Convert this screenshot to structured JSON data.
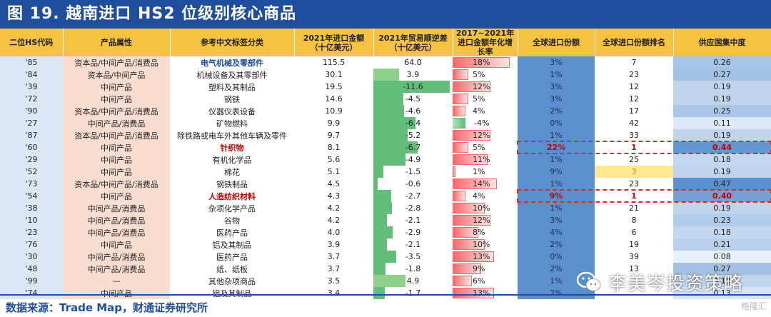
{
  "title": "图 19. 越南进口 HS2 位级别核心商品",
  "source": "数据来源：Trade Map，财通证券研究所",
  "watermark": "李美岑投资策略",
  "logo": "格隆汇",
  "colors": {
    "header_bg": "#f5c242",
    "title_bg": "#1f4e9c",
    "code_bg": "#dbe7f4",
    "attr_bg": "#f9ddd0",
    "balance_pos_fill": "#7fc97f",
    "balance_neg_fill": "#63be7b",
    "growth_fill": "#f8696b",
    "share_bg": "#5b8fce",
    "highlight": "#d0302a"
  },
  "chart_data": {
    "type": "table",
    "columns": [
      "二位HS代码",
      "产品属性",
      "参考中文标签分类",
      "2021年进口金额（十亿美元）",
      "2021年贸易顺逆差（十亿美元）",
      "2017~2021年进口金额年化增长率",
      "全球进口份额",
      "全球进口份额排名",
      "供应国集中度"
    ],
    "rows": [
      {
        "code": "'85",
        "attr": "资本品/中间产品/消费品",
        "cn": "电气机械及零部件",
        "cn_style": "blue",
        "imp": "115.5",
        "bal": 64.0,
        "bal_text": "64.0",
        "growth": 18,
        "growth_text": "18%",
        "share": "3%",
        "rank": "7",
        "conc": 0.26
      },
      {
        "code": "'84",
        "attr": "资本品/中间产品",
        "cn": "机械设备及其零部件",
        "cn_style": "",
        "imp": "30.1",
        "bal": 3.9,
        "bal_text": "3.9",
        "growth": 5,
        "growth_text": "5%",
        "share": "1%",
        "rank": "23",
        "conc": 0.27
      },
      {
        "code": "'39",
        "attr": "中间产品",
        "cn": "塑料及其制品",
        "cn_style": "",
        "imp": "19.5",
        "bal": -11.6,
        "bal_text": "-11.6",
        "growth": 12,
        "growth_text": "12%",
        "share": "3%",
        "rank": "12",
        "conc": 0.19
      },
      {
        "code": "'72",
        "attr": "中间产品",
        "cn": "钢铁",
        "cn_style": "",
        "imp": "14.6",
        "bal": -4.5,
        "bal_text": "-4.5",
        "growth": 5,
        "growth_text": "5%",
        "share": "3%",
        "rank": "12",
        "conc": 0.19
      },
      {
        "code": "'90",
        "attr": "资本品/中间产品/消费品",
        "cn": "仪器仪表设备",
        "cn_style": "",
        "imp": "10.9",
        "bal": -4.6,
        "bal_text": "-4.6",
        "growth": 4,
        "growth_text": "4%",
        "share": "2%",
        "rank": "17",
        "conc": 0.25
      },
      {
        "code": "'27",
        "attr": "中间产品/消费品",
        "cn": "矿物燃料",
        "cn_style": "",
        "imp": "9.9",
        "bal": -6.4,
        "bal_text": "-6.4",
        "growth": -4,
        "growth_text": "-4%",
        "share": "0%",
        "rank": "42",
        "conc": 0.11
      },
      {
        "code": "'87",
        "attr": "资本品/中间产品/消费品",
        "cn": "除铁路或电车外其他车辆及零件",
        "cn_style": "",
        "imp": "9.7",
        "bal": -5.2,
        "bal_text": "-5.2",
        "growth": 12,
        "growth_text": "12%",
        "share": "1%",
        "rank": "33",
        "conc": 0.19
      },
      {
        "code": "'60",
        "attr": "中间产品",
        "cn": "针织物",
        "cn_style": "red",
        "imp": "8.1",
        "bal": -6.7,
        "bal_text": "-6.7",
        "growth": 5,
        "growth_text": "5%",
        "share": "22%",
        "rank": "1",
        "conc": 0.44,
        "highlight": true
      },
      {
        "code": "'29",
        "attr": "中间产品",
        "cn": "有机化学品",
        "cn_style": "",
        "imp": "5.6",
        "bal": -4.9,
        "bal_text": "-4.9",
        "growth": 11,
        "growth_text": "11%",
        "share": "1%",
        "rank": "25",
        "conc": 0.18
      },
      {
        "code": "'52",
        "attr": "中间产品",
        "cn": "棉花",
        "cn_style": "",
        "imp": "5.1",
        "bal": -1.5,
        "bal_text": "-1.5",
        "growth": 1,
        "growth_text": "1%",
        "share": "9%",
        "rank": "3",
        "conc": 0.19,
        "rank_yellow": true
      },
      {
        "code": "'73",
        "attr": "资本品/中间产品/消费品",
        "cn": "钢铁制品",
        "cn_style": "",
        "imp": "4.5",
        "bal": -0.6,
        "bal_text": "-0.6",
        "growth": 14,
        "growth_text": "14%",
        "share": "1%",
        "rank": "23",
        "conc": 0.47
      },
      {
        "code": "'54",
        "attr": "中间产品",
        "cn": "人造纺织材料",
        "cn_style": "red",
        "imp": "4.3",
        "bal": -2.7,
        "bal_text": "-2.7",
        "growth": 4,
        "growth_text": "4%",
        "share": "9%",
        "rank": "1",
        "conc": 0.4,
        "highlight": true
      },
      {
        "code": "'38",
        "attr": "中间产品/消费品",
        "cn": "杂项化学产品",
        "cn_style": "",
        "imp": "4.2",
        "bal": -2.8,
        "bal_text": "-2.8",
        "growth": 10,
        "growth_text": "10%",
        "share": "1%",
        "rank": "21",
        "conc": 0.19
      },
      {
        "code": "'10",
        "attr": "中间产品/消费品",
        "cn": "谷物",
        "cn_style": "",
        "imp": "4.2",
        "bal": -2.1,
        "bal_text": "-2.1",
        "growth": 12,
        "growth_text": "12%",
        "share": "3%",
        "rank": "8",
        "conc": 0.23
      },
      {
        "code": "'23",
        "attr": "中间产品/消费品",
        "cn": "医药产品",
        "cn_style": "",
        "imp": "4.0",
        "bal": -2.9,
        "bal_text": "-2.9",
        "growth": 8,
        "growth_text": "8%",
        "share": "4%",
        "rank": "6",
        "conc": 0.18
      },
      {
        "code": "'76",
        "attr": "中间产品",
        "cn": "铝及其制品",
        "cn_style": "",
        "imp": "3.9",
        "bal": -2.1,
        "bal_text": "-2.1",
        "growth": 10,
        "growth_text": "10%",
        "share": "2%",
        "rank": "19",
        "conc": 0.21
      },
      {
        "code": "'30",
        "attr": "中间产品/消费品",
        "cn": "医药产品",
        "cn_style": "",
        "imp": "3.7",
        "bal": -3.5,
        "bal_text": "-3.5",
        "growth": 13,
        "growth_text": "13%",
        "share": "0%",
        "rank": "39",
        "conc": 0.08
      },
      {
        "code": "'48",
        "attr": "中间产品/消费品",
        "cn": "纸、纸板",
        "cn_style": "",
        "imp": "3.7",
        "bal": -1.8,
        "bal_text": "-1.8",
        "growth": 9,
        "growth_text": "9%",
        "share": "2%",
        "rank": "13",
        "conc": 0.27
      },
      {
        "code": "'99",
        "attr": "—",
        "cn": "其他杂项商品",
        "cn_style": "",
        "imp": "3.5",
        "bal": 4.9,
        "bal_text": "4.9",
        "growth": 6,
        "growth_text": "6%",
        "share": "1%",
        "rank": "",
        "conc": 0.19
      },
      {
        "code": "'74",
        "attr": "中间产品",
        "cn": "铝及其制品",
        "cn_style": "",
        "imp": "3.4",
        "bal": -1.7,
        "bal_text": "-1.7",
        "growth": 13,
        "growth_text": "13%",
        "share": "2%",
        "rank": "",
        "conc": 0.13
      }
    ]
  }
}
